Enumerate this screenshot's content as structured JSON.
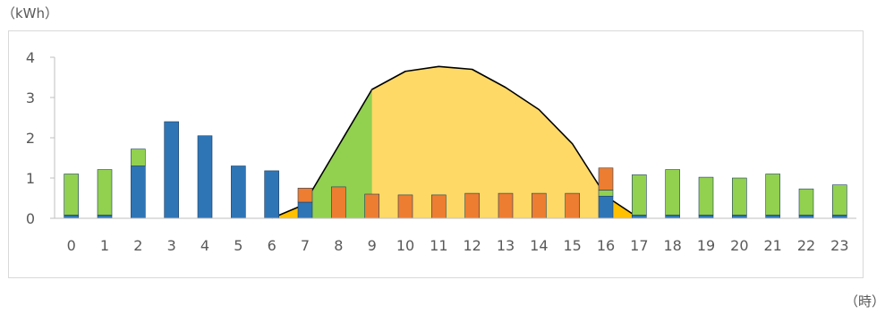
{
  "chart_data": {
    "type": "bar",
    "y_unit_label": "（kWh）",
    "x_unit_label": "（時）",
    "categories": [
      "0",
      "1",
      "2",
      "3",
      "4",
      "5",
      "6",
      "7",
      "8",
      "9",
      "10",
      "11",
      "12",
      "13",
      "14",
      "15",
      "16",
      "17",
      "18",
      "19",
      "20",
      "21",
      "22",
      "23"
    ],
    "ylim": [
      0,
      4
    ],
    "yticks": [
      "0",
      "1",
      "2",
      "3",
      "4"
    ],
    "grid": false,
    "legend": "none",
    "colors": {
      "blue_bar": "#2e75b6",
      "green_bar": "#92d050",
      "orange_bar": "#ed7d31",
      "yellow_area": "#ffc000",
      "green_area": "#92d050",
      "light_orange_area": "#ffd966",
      "axis": "#bfbfbf",
      "outline": "#000000"
    },
    "bar_series": [
      {
        "color": "#2e75b6",
        "values": [
          0.08,
          0.08,
          1.3,
          2.4,
          2.05,
          1.3,
          1.18,
          0.4,
          0,
          0,
          0,
          0,
          0,
          0,
          0,
          0,
          0.55,
          0.08,
          0.08,
          0.08,
          0.08,
          0.08,
          0.08,
          0.08
        ]
      },
      {
        "color": "#92d050",
        "values": [
          1.02,
          1.13,
          0.42,
          0,
          0,
          0,
          0,
          0,
          0,
          0,
          0,
          0,
          0,
          0,
          0,
          0,
          0.15,
          1.0,
          1.13,
          0.94,
          0.92,
          1.02,
          0.65,
          0.75
        ]
      },
      {
        "color": "#ed7d31",
        "values": [
          0,
          0,
          0,
          0,
          0,
          0,
          0,
          0.35,
          0.78,
          0.6,
          0.58,
          0.58,
          0.62,
          0.62,
          0.62,
          0.62,
          0.55,
          0,
          0,
          0,
          0,
          0,
          0,
          0
        ]
      }
    ],
    "area_series": [
      {
        "color": "#ffc000",
        "x": [
          6,
          7,
          8,
          9,
          10,
          11,
          12,
          13,
          14,
          15,
          16,
          17
        ],
        "values": [
          0,
          0.35,
          0.75,
          0.6,
          0.57,
          0.58,
          0.62,
          0.63,
          0.62,
          0.62,
          0.55,
          0
        ]
      },
      {
        "color": "#92d050",
        "x": [
          7,
          8,
          9,
          10,
          11,
          12,
          13
        ],
        "values": [
          0.4,
          1.8,
          3.2,
          3.45,
          3.45,
          1.1,
          0.63
        ]
      },
      {
        "color": "#ffd966",
        "x": [
          9,
          10,
          11,
          12,
          13,
          14,
          15,
          16
        ],
        "values": [
          3.2,
          3.65,
          3.77,
          3.7,
          3.25,
          2.7,
          1.85,
          0.55
        ]
      }
    ]
  }
}
